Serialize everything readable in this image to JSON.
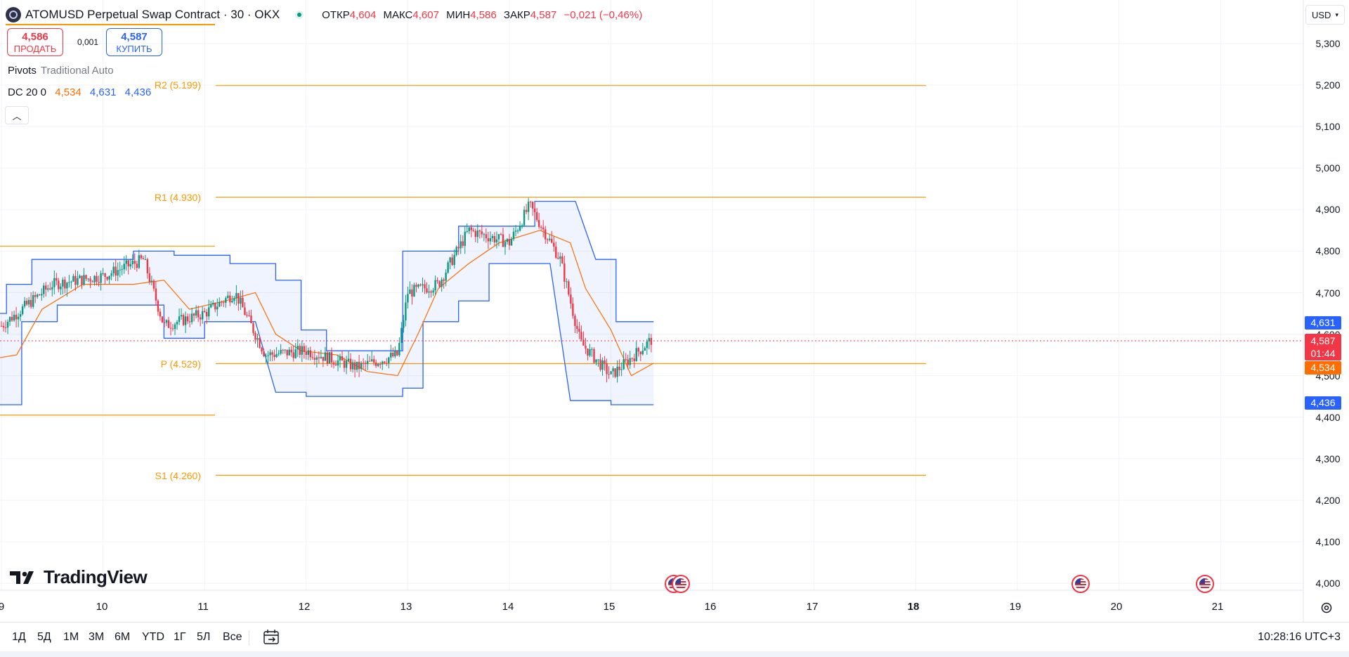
{
  "header": {
    "symbol_title": "ATOMUSD Perpetual Swap Contract · 30 · OKX",
    "ohlc": {
      "open_label": "ОТКР",
      "open": "4,604",
      "high_label": "МАКС",
      "high": "4,607",
      "low_label": "МИН",
      "low": "4,586",
      "close_label": "ЗАКР",
      "close": "4,587",
      "change": "−0,021 (−0,46%)"
    },
    "currency": "USD"
  },
  "trade": {
    "sell_price": "4,586",
    "sell_label": "ПРОДАТЬ",
    "spread": "0,001",
    "buy_price": "4,587",
    "buy_label": "КУПИТЬ"
  },
  "indicators": {
    "pivots_name": "Pivots",
    "pivots_params": "Traditional Auto",
    "dc_name": "DC 20 0",
    "dc_mid": "4,534",
    "dc_upper": "4,631",
    "dc_lower": "4,436"
  },
  "pivots": [
    {
      "label": "R2 (5.199)",
      "value": 5.199
    },
    {
      "label": "R1 (4.930)",
      "value": 4.93
    },
    {
      "label": "P (4.529)",
      "value": 4.529
    },
    {
      "label": "S1 (4.260)",
      "value": 4.26
    }
  ],
  "price_axis": [
    "5,300",
    "5,200",
    "5,100",
    "5,000",
    "4,900",
    "4,800",
    "4,700",
    "4,600",
    "4,500",
    "4,400",
    "4,300",
    "4,200",
    "4,100",
    "4,000"
  ],
  "time_axis": [
    {
      "label": "9",
      "bold": false
    },
    {
      "label": "10",
      "bold": false
    },
    {
      "label": "11",
      "bold": false
    },
    {
      "label": "12",
      "bold": false
    },
    {
      "label": "13",
      "bold": false
    },
    {
      "label": "14",
      "bold": false
    },
    {
      "label": "15",
      "bold": false
    },
    {
      "label": "16",
      "bold": false
    },
    {
      "label": "17",
      "bold": false
    },
    {
      "label": "18",
      "bold": true
    },
    {
      "label": "19",
      "bold": false
    },
    {
      "label": "20",
      "bold": false
    },
    {
      "label": "21",
      "bold": false
    }
  ],
  "price_tags": {
    "dc_upper": "4,631",
    "last": "4,587",
    "countdown": "01:44",
    "dc_mid": "4,534",
    "dc_lower": "4,436"
  },
  "colors": {
    "up": "#089981",
    "down": "#f23645",
    "pivot": "#ff9800",
    "dc_band": "#2962ff",
    "dc_mid": "#ff6d00"
  },
  "branding": {
    "logo_text": "TradingView"
  },
  "bottom": {
    "ranges": [
      "1Д",
      "5Д",
      "1М",
      "3М",
      "6М",
      "YTD",
      "1Г",
      "5Л",
      "Все"
    ],
    "clock": "10:28:16 UTC+3"
  },
  "chart_data": {
    "type": "candlestick",
    "x_label": "",
    "y_label": "",
    "ylim": [
      4.0,
      5.3
    ],
    "dc_upper_path": [
      [
        8.9,
        4.65
      ],
      [
        9.05,
        4.65
      ],
      [
        9.05,
        4.72
      ],
      [
        9.3,
        4.72
      ],
      [
        9.3,
        4.78
      ],
      [
        10.3,
        4.78
      ],
      [
        10.3,
        4.8
      ],
      [
        10.7,
        4.8
      ],
      [
        10.7,
        4.79
      ],
      [
        11.25,
        4.79
      ],
      [
        11.25,
        4.77
      ],
      [
        11.7,
        4.77
      ],
      [
        11.7,
        4.73
      ],
      [
        11.95,
        4.73
      ],
      [
        11.95,
        4.61
      ],
      [
        12.2,
        4.61
      ],
      [
        12.2,
        4.56
      ],
      [
        12.95,
        4.56
      ],
      [
        12.95,
        4.8
      ],
      [
        13.5,
        4.8
      ],
      [
        13.5,
        4.86
      ],
      [
        14.25,
        4.86
      ],
      [
        14.25,
        4.92
      ],
      [
        14.65,
        4.92
      ],
      [
        14.85,
        4.78
      ],
      [
        15.05,
        4.78
      ],
      [
        15.05,
        4.63
      ],
      [
        15.42,
        4.63
      ]
    ],
    "dc_lower_path": [
      [
        8.9,
        4.43
      ],
      [
        9.2,
        4.43
      ],
      [
        9.2,
        4.63
      ],
      [
        9.55,
        4.63
      ],
      [
        9.55,
        4.67
      ],
      [
        10.3,
        4.67
      ],
      [
        10.6,
        4.67
      ],
      [
        10.6,
        4.59
      ],
      [
        11.0,
        4.59
      ],
      [
        11.0,
        4.63
      ],
      [
        11.5,
        4.63
      ],
      [
        11.7,
        4.46
      ],
      [
        12.0,
        4.46
      ],
      [
        12.0,
        4.45
      ],
      [
        12.95,
        4.45
      ],
      [
        12.95,
        4.47
      ],
      [
        13.15,
        4.47
      ],
      [
        13.15,
        4.63
      ],
      [
        13.5,
        4.63
      ],
      [
        13.5,
        4.68
      ],
      [
        13.8,
        4.68
      ],
      [
        13.8,
        4.77
      ],
      [
        14.4,
        4.77
      ],
      [
        14.6,
        4.44
      ],
      [
        15.0,
        4.44
      ],
      [
        15.0,
        4.43
      ],
      [
        15.42,
        4.43
      ]
    ],
    "dc_mid_path": [
      [
        8.9,
        4.54
      ],
      [
        9.15,
        4.55
      ],
      [
        9.4,
        4.66
      ],
      [
        9.8,
        4.72
      ],
      [
        10.3,
        4.72
      ],
      [
        10.6,
        4.73
      ],
      [
        10.85,
        4.66
      ],
      [
        11.2,
        4.68
      ],
      [
        11.5,
        4.7
      ],
      [
        11.7,
        4.6
      ],
      [
        11.95,
        4.56
      ],
      [
        12.3,
        4.55
      ],
      [
        12.6,
        4.51
      ],
      [
        12.9,
        4.5
      ],
      [
        13.1,
        4.6
      ],
      [
        13.3,
        4.71
      ],
      [
        13.6,
        4.77
      ],
      [
        13.9,
        4.82
      ],
      [
        14.3,
        4.85
      ],
      [
        14.6,
        4.82
      ],
      [
        14.75,
        4.71
      ],
      [
        15.0,
        4.61
      ],
      [
        15.2,
        4.5
      ],
      [
        15.42,
        4.53
      ]
    ],
    "candles_approx": [
      {
        "day": 9.0,
        "close": 4.62
      },
      {
        "day": 9.5,
        "close": 4.72
      },
      {
        "day": 10.0,
        "close": 4.74
      },
      {
        "day": 10.4,
        "close": 4.78
      },
      {
        "day": 10.6,
        "close": 4.62
      },
      {
        "day": 11.0,
        "close": 4.65
      },
      {
        "day": 11.3,
        "close": 4.7
      },
      {
        "day": 11.6,
        "close": 4.55
      },
      {
        "day": 12.0,
        "close": 4.56
      },
      {
        "day": 12.5,
        "close": 4.52
      },
      {
        "day": 12.9,
        "close": 4.55
      },
      {
        "day": 13.0,
        "close": 4.7
      },
      {
        "day": 13.3,
        "close": 4.72
      },
      {
        "day": 13.6,
        "close": 4.85
      },
      {
        "day": 14.0,
        "close": 4.82
      },
      {
        "day": 14.2,
        "close": 4.91
      },
      {
        "day": 14.5,
        "close": 4.78
      },
      {
        "day": 14.7,
        "close": 4.58
      },
      {
        "day": 15.0,
        "close": 4.5
      },
      {
        "day": 15.4,
        "close": 4.587
      }
    ]
  }
}
